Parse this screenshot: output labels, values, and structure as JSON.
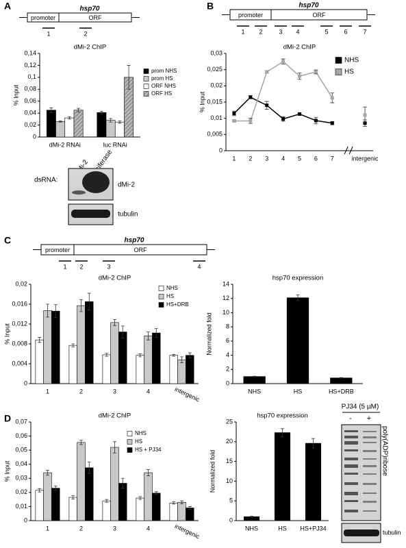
{
  "panels": [
    "A",
    "B",
    "C",
    "D"
  ],
  "gene_maps": [
    {
      "title": "hsp70",
      "promoter": "promoter",
      "orf": "ORF",
      "amplicons": [
        "1",
        "2"
      ]
    },
    {
      "title": "hsp70",
      "promoter": "promoter",
      "orf": "ORF",
      "amplicons": [
        "1",
        "2",
        "3",
        "4",
        "5",
        "6",
        "7"
      ]
    },
    {
      "title": "hsp70",
      "promoter": "promoter",
      "orf": "ORF",
      "amplicons": [
        "1",
        "2",
        "3",
        "4"
      ]
    }
  ],
  "blots": [
    {
      "header": "dsRNA:",
      "lanes": [
        "dMi-2",
        "luciferase"
      ],
      "bands": [
        "dMi-2",
        "tubulin"
      ]
    },
    {
      "header": "PJ34 (5 µM)",
      "lanes": [
        "-",
        "+"
      ],
      "bands": [
        "poly(ADP)ribose",
        "tubulin"
      ]
    }
  ],
  "chart_data": [
    {
      "type": "bar",
      "title": "dMi-2 ChIP",
      "y_label": "% Input",
      "categories": [
        "dMi-2 RNAi",
        "luc RNAi"
      ],
      "series": [
        {
          "name": "prom NHS",
          "color": "#000000",
          "values": [
            0.045,
            0.041
          ],
          "errors": [
            0.004,
            0.002
          ]
        },
        {
          "name": "prom HS",
          "color": "#c8c8c8",
          "values": [
            0.026,
            0.028
          ],
          "errors": [
            0.001,
            0.003
          ]
        },
        {
          "name": "ORF NHS",
          "color": "#ffffff",
          "values": [
            0.032,
            0.025
          ],
          "errors": [
            0.002,
            0.002
          ]
        },
        {
          "name": "ORF HS",
          "color": "#9a9a9a",
          "hatch": true,
          "values": [
            0.045,
            0.1
          ],
          "errors": [
            0.003,
            0.02
          ]
        }
      ],
      "ylim": [
        0,
        0.14
      ],
      "yticks": [
        0,
        {
          "value": 0.02,
          "label": "0,02"
        },
        {
          "value": 0.04,
          "label": "0,04"
        },
        {
          "value": 0.06,
          "label": "0,06"
        },
        {
          "value": 0.08,
          "label": "0,08"
        },
        {
          "value": 0.1,
          "label": "0,1"
        },
        {
          "value": 0.12,
          "label": "0,12"
        },
        {
          "value": 0.14,
          "label": "0,14"
        }
      ],
      "legend": "right"
    },
    {
      "type": "line",
      "title": "dMi-2 ChIP",
      "y_label": "% Input",
      "categories": [
        "1",
        "2",
        "3",
        "4",
        "5",
        "6",
        "7",
        null,
        "intergenic"
      ],
      "series": [
        {
          "name": "NHS",
          "color": "#000000",
          "values": [
            0.0115,
            0.0165,
            0.014,
            0.0098,
            0.0113,
            0.0093,
            0.0085,
            null,
            0.0085
          ],
          "errors": [
            0.0007,
            0.0005,
            0.0012,
            0.0007,
            0.0003,
            0.001,
            0.0005,
            null,
            0.001
          ]
        },
        {
          "name": "HS",
          "color": "#a6a6a6",
          "values": [
            0.0092,
            0.0092,
            0.0243,
            0.0275,
            0.023,
            0.0243,
            0.0163,
            null,
            0.011
          ],
          "errors": [
            0.0003,
            0.0008,
            0.0004,
            0.0008,
            0.001,
            0.0006,
            0.0015,
            null,
            0.0025
          ]
        }
      ],
      "ylim": [
        0,
        0.03
      ],
      "yticks": [
        0,
        {
          "value": 0.005,
          "label": "0,005"
        },
        {
          "value": 0.01,
          "label": "0,01"
        },
        {
          "value": 0.015,
          "label": "0,015"
        },
        {
          "value": 0.02,
          "label": "0,02"
        },
        {
          "value": 0.025,
          "label": "0,025"
        },
        {
          "value": 0.03,
          "label": "0,03"
        }
      ],
      "legend": "upper right"
    },
    {
      "type": "bar",
      "title": "dMi-2 ChIP",
      "y_label": "% Input",
      "categories": [
        "1",
        "2",
        "3",
        "4",
        "intergenic"
      ],
      "series": [
        {
          "name": "NHS",
          "color": "#ffffff",
          "values": [
            0.0088,
            0.0077,
            0.0058,
            0.0057,
            0.0057
          ],
          "errors": [
            0.0005,
            0.0003,
            0.0003,
            0.0003,
            0.0002
          ]
        },
        {
          "name": "HS",
          "color": "#c8c8c8",
          "values": [
            0.0147,
            0.0157,
            0.0123,
            0.0096,
            0.0048
          ],
          "errors": [
            0.0013,
            0.0012,
            0.0006,
            0.0008,
            0.0006
          ]
        },
        {
          "name": "HS+DRB",
          "color": "#000000",
          "values": [
            0.0146,
            0.0165,
            0.0104,
            0.0102,
            0.0057
          ],
          "errors": [
            0.0013,
            0.0017,
            0.0012,
            0.0009,
            0.0005
          ]
        }
      ],
      "ylim": [
        0,
        0.02
      ],
      "yticks": [
        0,
        {
          "value": 0.004,
          "label": "0,004"
        },
        {
          "value": 0.008,
          "label": "0,008"
        },
        {
          "value": 0.012,
          "label": "0,012"
        },
        {
          "value": 0.016,
          "label": "0,016"
        },
        {
          "value": 0.02,
          "label": "0,02"
        }
      ],
      "legend": "upper right"
    },
    {
      "type": "bar",
      "title": "hsp70 expression",
      "y_label": "Normalized fold",
      "categories": [
        "NHS",
        "HS",
        "HS+DRB"
      ],
      "color": "#000000",
      "values": [
        1,
        12.1,
        0.8
      ],
      "errors": [
        0.05,
        0.4,
        0.05
      ],
      "ylim": [
        0,
        14
      ],
      "yticks": [
        0,
        2,
        4,
        6,
        8,
        10,
        12,
        14
      ]
    },
    {
      "type": "bar",
      "title": "dMi-2 ChIP",
      "y_label": "% Input",
      "categories": [
        "1",
        "2",
        "3",
        "4",
        "intergenic"
      ],
      "series": [
        {
          "name": "NHS",
          "color": "#ffffff",
          "values": [
            0.0215,
            0.0165,
            0.014,
            0.016,
            0.0125
          ],
          "errors": [
            0.0012,
            0.0012,
            0.001,
            0.001,
            0.0008
          ]
        },
        {
          "name": "HS",
          "color": "#c8c8c8",
          "values": [
            0.034,
            0.0555,
            0.052,
            0.034,
            0.013
          ],
          "errors": [
            0.0018,
            0.0015,
            0.004,
            0.0022,
            0.001
          ]
        },
        {
          "name": "HS + PJ34",
          "color": "#000000",
          "values": [
            0.023,
            0.0375,
            0.0265,
            0.0195,
            0.009
          ],
          "errors": [
            0.0015,
            0.004,
            0.0035,
            0.001,
            0.001
          ]
        }
      ],
      "ylim": [
        0,
        0.07
      ],
      "yticks": [
        0,
        {
          "value": 0.01,
          "label": "0,01"
        },
        {
          "value": 0.02,
          "label": "0,02"
        },
        {
          "value": 0.03,
          "label": "0,03"
        },
        {
          "value": 0.04,
          "label": "0,04"
        },
        {
          "value": 0.05,
          "label": "0,05"
        },
        {
          "value": 0.06,
          "label": "0,06"
        },
        {
          "value": 0.07,
          "label": "0,07"
        }
      ],
      "legend": "upper right"
    },
    {
      "type": "bar",
      "title": "hsp70 expression",
      "y_label": "Normalized fold",
      "categories": [
        "NHS",
        "HS",
        "HS+PJ34"
      ],
      "color": "#000000",
      "values": [
        1,
        22.3,
        19.6
      ],
      "errors": [
        0.1,
        1,
        1.2
      ],
      "ylim": [
        0,
        25
      ],
      "yticks": [
        0,
        5,
        10,
        15,
        20,
        25
      ]
    }
  ]
}
